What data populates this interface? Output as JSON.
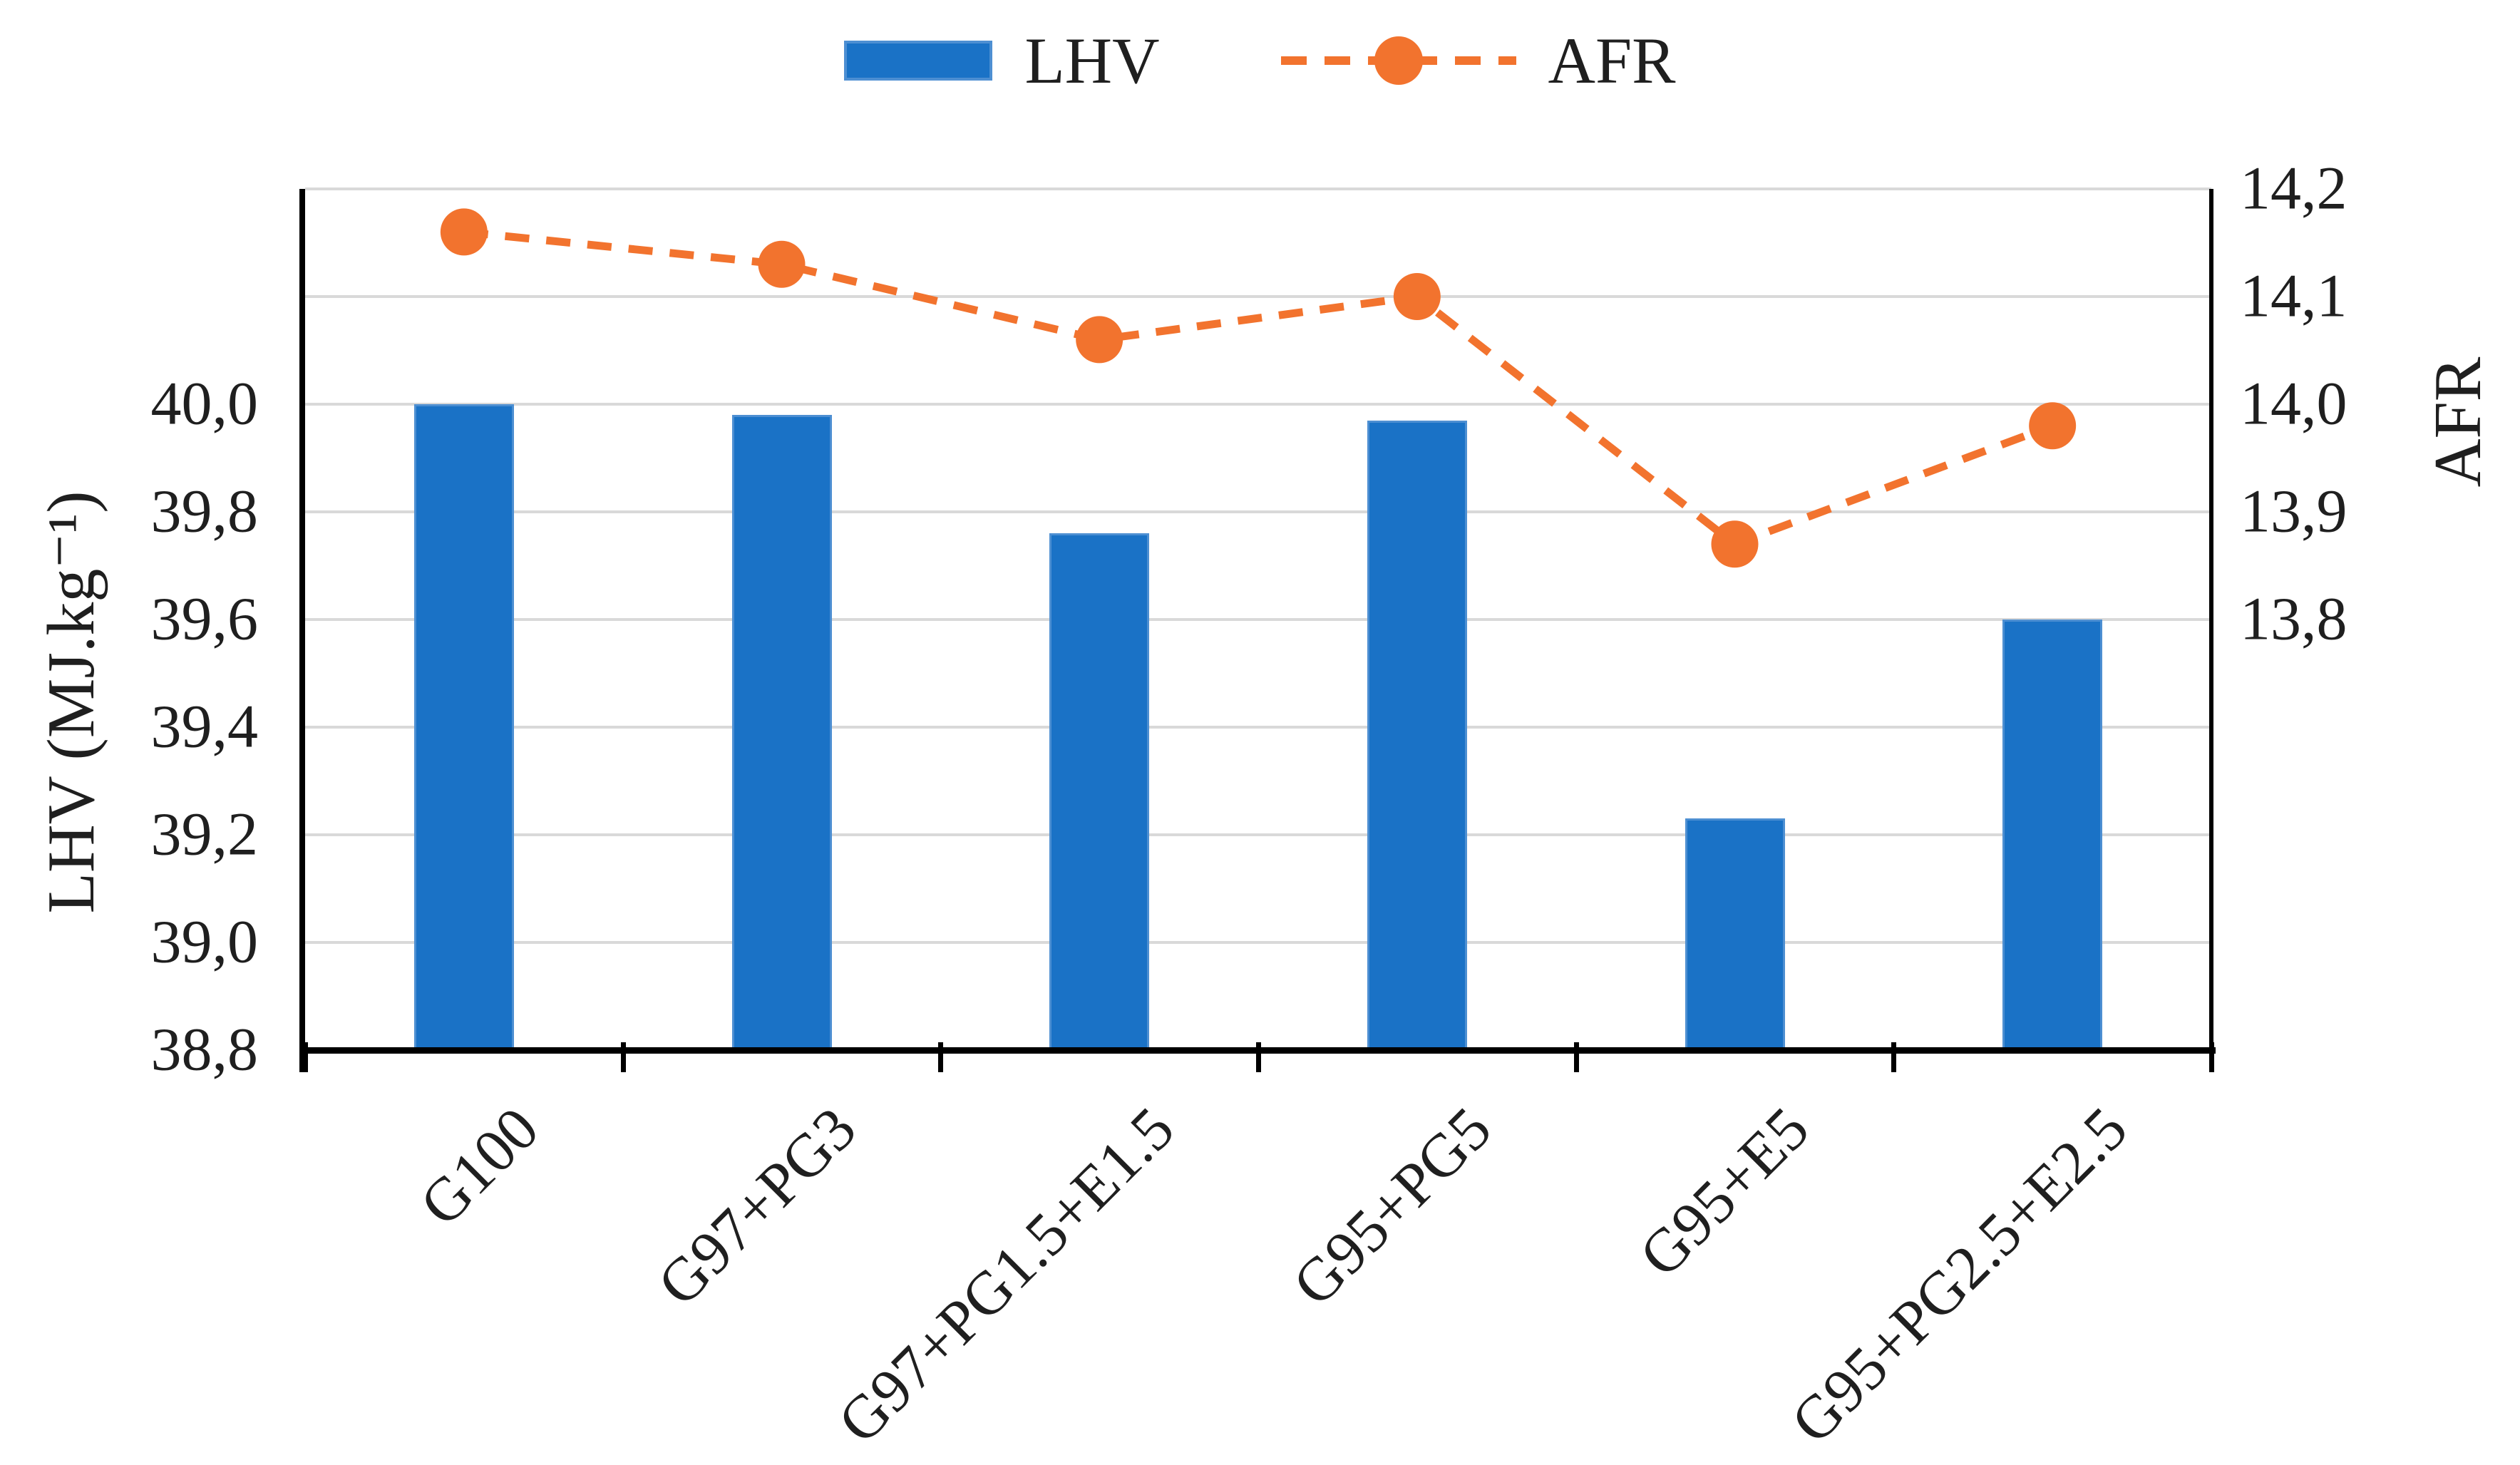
{
  "figure": {
    "background": "#ffffff",
    "text_color": "#1f1f1f",
    "gridline_color": "#d9d9d9",
    "axis_color": "#000000"
  },
  "legend": {
    "position": "top-center",
    "items": [
      {
        "label": "LHV",
        "swatch": "bar",
        "color": "#1a72c6"
      },
      {
        "label": "AFR",
        "swatch": "dashed-line-marker",
        "color": "#f2732e"
      }
    ]
  },
  "chart_data": {
    "type": "combo-bar-line",
    "categories": [
      "G100",
      "G97+PG3",
      "G97+PG1.5+E1.5",
      "G95+PG5",
      "G95+E5",
      "G95+PG2.5+E2.5"
    ],
    "series": [
      {
        "name": "LHV",
        "type": "bar",
        "axis": "left",
        "color": "#1a72c6",
        "edge_color": "#4d8fd2",
        "values": [
          40.0,
          39.98,
          39.76,
          39.97,
          39.23,
          39.6
        ]
      },
      {
        "name": "AFR",
        "type": "line",
        "axis": "right",
        "color": "#f2732e",
        "line_style": "dashed",
        "marker": "circle",
        "values": [
          14.16,
          14.13,
          14.06,
          14.1,
          13.87,
          13.98
        ]
      }
    ],
    "left_axis": {
      "label": "LHV (MJ.kg⁻¹)",
      "min": 38.8,
      "max": 40.4,
      "gridline_step": 0.2,
      "tick_labels": [
        "38,8",
        "39,0",
        "39,2",
        "39,4",
        "39,6",
        "39,8",
        "40,0"
      ],
      "tick_values": [
        38.8,
        39.0,
        39.2,
        39.4,
        39.6,
        39.8,
        40.0
      ]
    },
    "right_axis": {
      "label": "AFR",
      "min": 13.4,
      "max": 14.2,
      "gridline_step": 0.1,
      "tick_labels": [
        "13,8",
        "13,9",
        "14,0",
        "14,1",
        "14,2"
      ],
      "tick_values": [
        13.8,
        13.9,
        14.0,
        14.1,
        14.2
      ]
    },
    "grid": true,
    "legend_position": "top",
    "decimal_separator": ","
  }
}
